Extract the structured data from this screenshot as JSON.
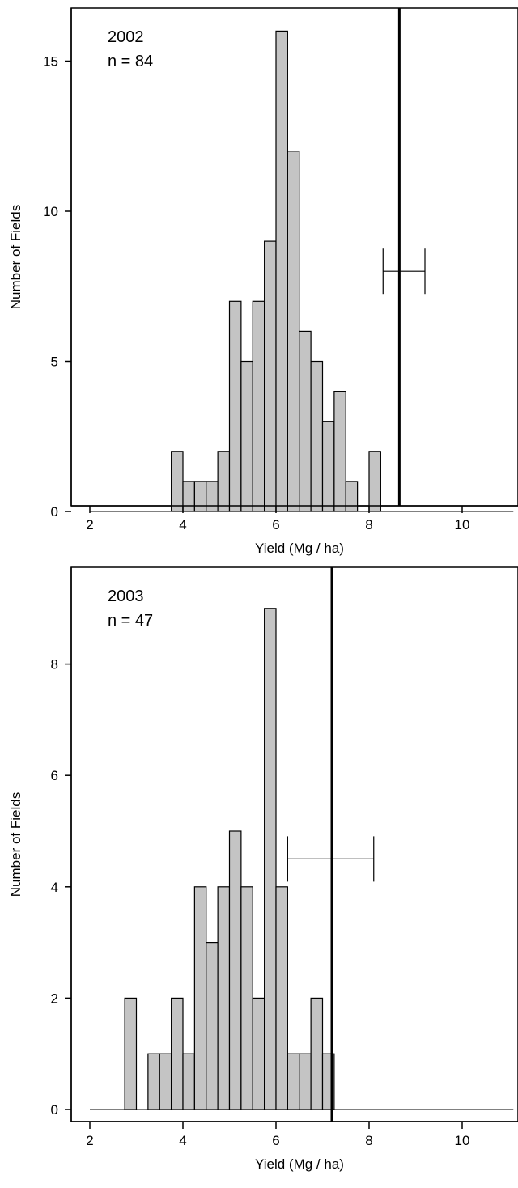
{
  "chart_data": [
    {
      "type": "bar",
      "panel_text": [
        "2002",
        "n = 84"
      ],
      "xlabel": "Yield (Mg / ha)",
      "ylabel": "Number of Fields",
      "xlim": [
        1.85,
        11.1
      ],
      "ylim": [
        -0.5,
        16.8
      ],
      "xticks": [
        2,
        4,
        6,
        8,
        10
      ],
      "yticks": [
        0,
        5,
        10,
        15
      ],
      "bin_width": 0.25,
      "bins": [
        {
          "x0": 3.75,
          "count": 2
        },
        {
          "x0": 4.0,
          "count": 1
        },
        {
          "x0": 4.25,
          "count": 1
        },
        {
          "x0": 4.5,
          "count": 1
        },
        {
          "x0": 4.75,
          "count": 2
        },
        {
          "x0": 5.0,
          "count": 7
        },
        {
          "x0": 5.25,
          "count": 5
        },
        {
          "x0": 5.5,
          "count": 7
        },
        {
          "x0": 5.75,
          "count": 9
        },
        {
          "x0": 6.0,
          "count": 16
        },
        {
          "x0": 6.25,
          "count": 12
        },
        {
          "x0": 6.5,
          "count": 6
        },
        {
          "x0": 6.75,
          "count": 5
        },
        {
          "x0": 7.0,
          "count": 3
        },
        {
          "x0": 7.25,
          "count": 4
        },
        {
          "x0": 7.5,
          "count": 1
        },
        {
          "x0": 8.0,
          "count": 2
        }
      ],
      "baseline": {
        "x0": 2.0,
        "x1": 11.1
      },
      "vertical_line": 8.65,
      "range_bar": {
        "x0": 8.3,
        "x1": 9.2,
        "y": 8.0
      },
      "bar_color": "#c4c4c4"
    },
    {
      "type": "bar",
      "panel_text": [
        "2003",
        "n = 47"
      ],
      "xlabel": "Yield (Mg / ha)",
      "ylabel": "Number of Fields",
      "xlim": [
        1.85,
        11.1
      ],
      "ylim": [
        -0.25,
        9.4
      ],
      "xticks": [
        2,
        4,
        6,
        8,
        10
      ],
      "yticks": [
        0,
        2,
        4,
        6,
        8
      ],
      "bin_width": 0.25,
      "bins": [
        {
          "x0": 2.75,
          "count": 2
        },
        {
          "x0": 3.25,
          "count": 1
        },
        {
          "x0": 3.5,
          "count": 1
        },
        {
          "x0": 3.75,
          "count": 2
        },
        {
          "x0": 4.0,
          "count": 1
        },
        {
          "x0": 4.25,
          "count": 4
        },
        {
          "x0": 4.5,
          "count": 3
        },
        {
          "x0": 4.75,
          "count": 4
        },
        {
          "x0": 5.0,
          "count": 5
        },
        {
          "x0": 5.25,
          "count": 4
        },
        {
          "x0": 5.5,
          "count": 2
        },
        {
          "x0": 5.75,
          "count": 9
        },
        {
          "x0": 6.0,
          "count": 4
        },
        {
          "x0": 6.25,
          "count": 1
        },
        {
          "x0": 6.5,
          "count": 1
        },
        {
          "x0": 6.75,
          "count": 2
        },
        {
          "x0": 7.0,
          "count": 1
        }
      ],
      "baseline": {
        "x0": 2.0,
        "x1": 11.1
      },
      "vertical_line": 7.2,
      "range_bar": {
        "x0": 6.25,
        "x1": 8.1,
        "y": 4.5
      },
      "bar_color": "#c4c4c4"
    }
  ]
}
